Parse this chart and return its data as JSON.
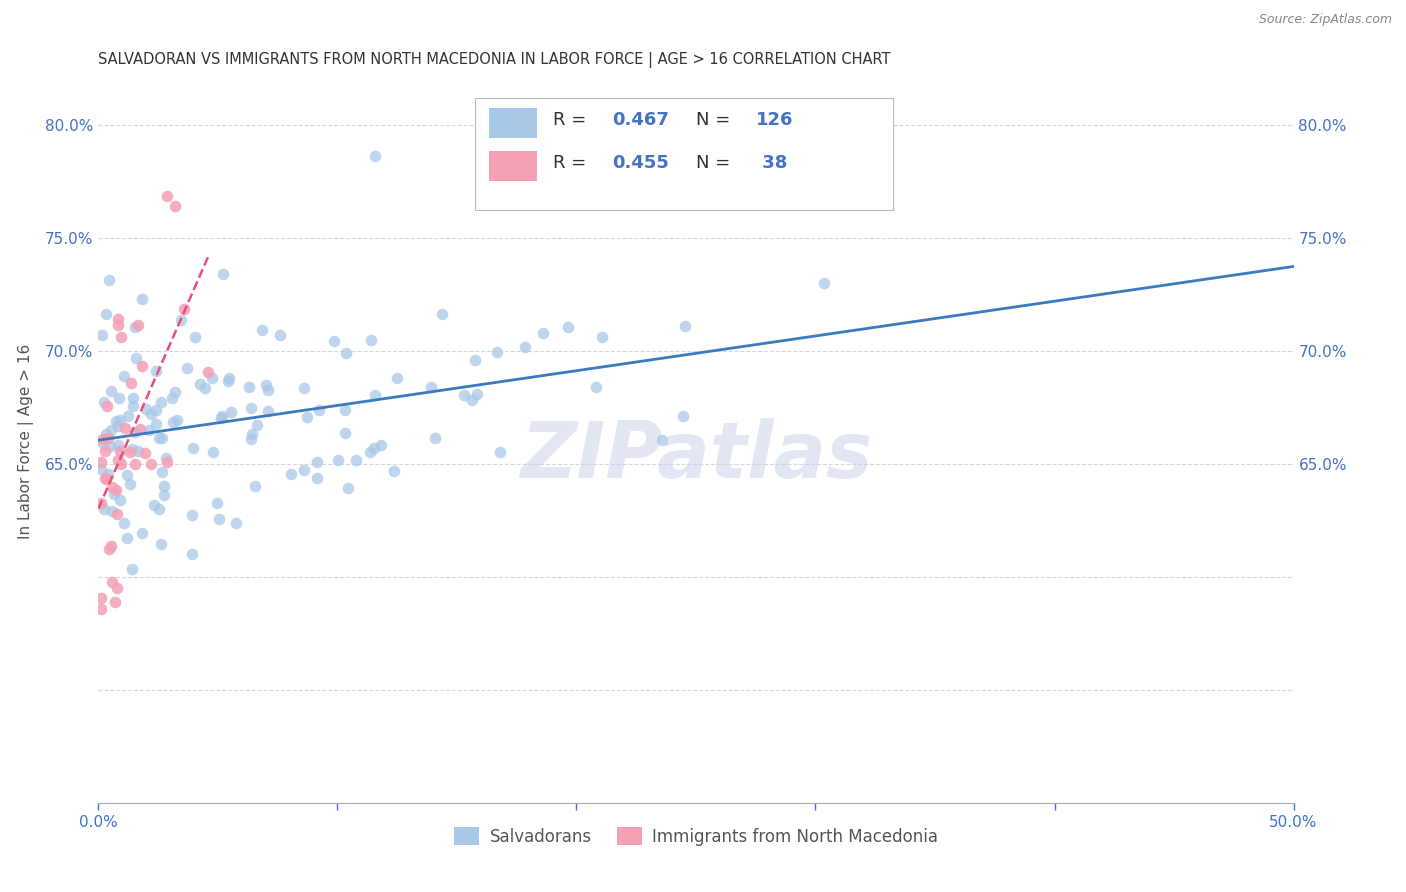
{
  "title": "SALVADORAN VS IMMIGRANTS FROM NORTH MACEDONIA IN LABOR FORCE | AGE > 16 CORRELATION CHART",
  "source": "Source: ZipAtlas.com",
  "ylabel": "In Labor Force | Age > 16",
  "xlim": [
    0.0,
    0.5
  ],
  "ylim": [
    0.5,
    0.82
  ],
  "blue_color": "#a8c8e8",
  "pink_color": "#f4a0b5",
  "blue_line_color": "#3a7abf",
  "pink_line_color": "#e8507a",
  "legend_blue_R": "0.467",
  "legend_blue_N": "126",
  "legend_pink_R": "0.455",
  "legend_pink_N": "38",
  "legend_label_blue": "Salvadorans",
  "legend_label_pink": "Immigrants from North Macedonia",
  "watermark": "ZIPatlas",
  "watermark_color": "#c8d0e8",
  "text_color": "#4472c4",
  "label_color": "#555555",
  "title_color": "#333333",
  "source_color": "#888888"
}
